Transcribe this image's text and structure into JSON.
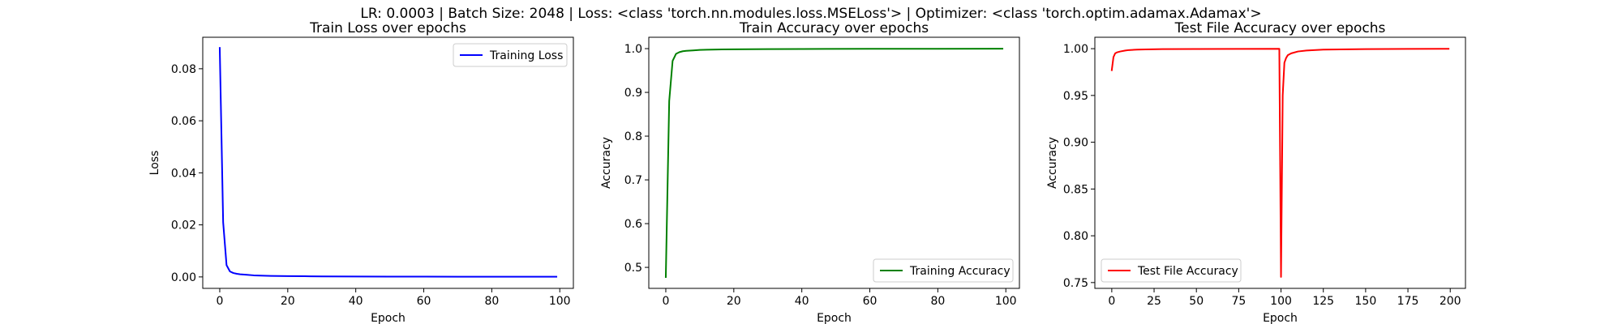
{
  "figure": {
    "suptitle": "LR: 0.0003 | Batch Size: 2048 | Loss: <class 'torch.nn.modules.loss.MSELoss'> | Optimizer: <class 'torch.optim.adamax.Adamax'>"
  },
  "chart_data": [
    {
      "type": "line",
      "title": "Train Loss over epochs",
      "xlabel": "Epoch",
      "ylabel": "Loss",
      "xlim": [
        -5,
        104
      ],
      "ylim": [
        -0.0044,
        0.0921
      ],
      "xticks": [
        0,
        20,
        40,
        60,
        80,
        100
      ],
      "xtick_labels": [
        "0",
        "20",
        "40",
        "60",
        "80",
        "100"
      ],
      "yticks": [
        0.0,
        0.02,
        0.04,
        0.06,
        0.08
      ],
      "ytick_labels": [
        "0.00",
        "0.02",
        "0.04",
        "0.06",
        "0.08"
      ],
      "grid": false,
      "legend": "top-right",
      "series": [
        {
          "name": "Training Loss",
          "color": "#0000ff",
          "x": [
            0,
            1,
            2,
            3,
            4,
            5,
            6,
            8,
            10,
            12,
            15,
            20,
            25,
            30,
            40,
            50,
            60,
            70,
            80,
            90,
            99
          ],
          "y": [
            0.088,
            0.021,
            0.0045,
            0.0021,
            0.0015,
            0.0012,
            0.001,
            0.0008,
            0.0006,
            0.0005,
            0.0004,
            0.0003,
            0.00025,
            0.0002,
            0.00015,
            0.00012,
            0.0001,
            9e-05,
            8e-05,
            7e-05,
            6e-05
          ]
        }
      ]
    },
    {
      "type": "line",
      "title": "Train Accuracy over epochs",
      "xlabel": "Epoch",
      "ylabel": "Accuracy",
      "xlim": [
        -5,
        104
      ],
      "ylim": [
        0.452,
        1.026
      ],
      "xticks": [
        0,
        20,
        40,
        60,
        80,
        100
      ],
      "xtick_labels": [
        "0",
        "20",
        "40",
        "60",
        "80",
        "100"
      ],
      "yticks": [
        0.5,
        0.6,
        0.7,
        0.8,
        0.9,
        1.0
      ],
      "ytick_labels": [
        "0.5",
        "0.6",
        "0.7",
        "0.8",
        "0.9",
        "1.0"
      ],
      "grid": false,
      "legend": "bottom-right",
      "series": [
        {
          "name": "Training Accuracy",
          "color": "#008000",
          "x": [
            0,
            1,
            2,
            3,
            4,
            5,
            6,
            8,
            10,
            12,
            15,
            20,
            30,
            40,
            60,
            80,
            99
          ],
          "y": [
            0.478,
            0.88,
            0.972,
            0.988,
            0.992,
            0.994,
            0.995,
            0.996,
            0.997,
            0.9975,
            0.998,
            0.9985,
            0.999,
            0.9992,
            0.9995,
            0.9997,
            0.9998
          ]
        }
      ]
    },
    {
      "type": "line",
      "title": "Test File Accuracy over epochs",
      "xlabel": "Epoch",
      "ylabel": "Accuracy",
      "xlim": [
        -10,
        209
      ],
      "ylim": [
        0.7438,
        1.0122
      ],
      "xticks": [
        0,
        25,
        50,
        75,
        100,
        125,
        150,
        175,
        200
      ],
      "xtick_labels": [
        "0",
        "25",
        "50",
        "75",
        "100",
        "125",
        "150",
        "175",
        "200"
      ],
      "yticks": [
        0.75,
        0.8,
        0.85,
        0.9,
        0.95,
        1.0
      ],
      "ytick_labels": [
        "0.75",
        "0.80",
        "0.85",
        "0.90",
        "0.95",
        "1.00"
      ],
      "grid": false,
      "legend": "bottom-left",
      "series": [
        {
          "name": "Test File Accuracy",
          "color": "#ff0000",
          "x": [
            0,
            1,
            2,
            3,
            5,
            8,
            10,
            15,
            20,
            30,
            50,
            75,
            99,
            100,
            101,
            102,
            103,
            104,
            106,
            110,
            115,
            125,
            150,
            175,
            199
          ],
          "y": [
            0.977,
            0.991,
            0.995,
            0.996,
            0.997,
            0.998,
            0.9985,
            0.999,
            0.9992,
            0.9995,
            0.9997,
            0.9998,
            0.9999,
            0.756,
            0.95,
            0.985,
            0.99,
            0.993,
            0.995,
            0.997,
            0.998,
            0.999,
            0.9995,
            0.9998,
            0.9999
          ]
        }
      ]
    }
  ]
}
